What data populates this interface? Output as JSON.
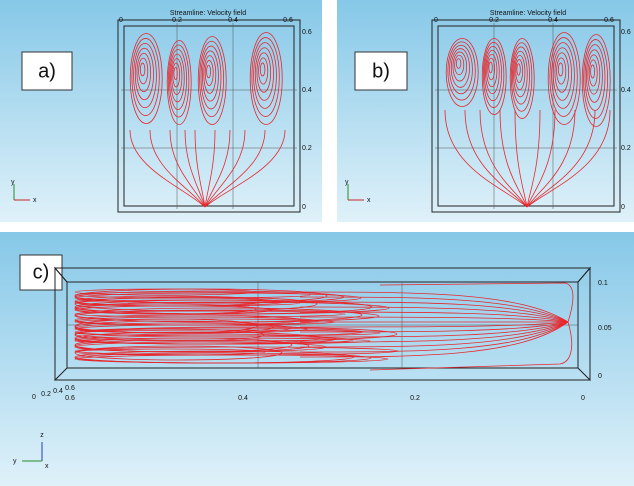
{
  "panels": [
    {
      "label": "a)",
      "title": "Streamline: Velocity field",
      "top_ticks": [
        "0",
        "0.2",
        "0.4",
        "0.6"
      ],
      "right_ticks": [
        "0.6",
        "0.4",
        "0.2",
        "0"
      ],
      "axes": [
        "y",
        "x"
      ]
    },
    {
      "label": "b)",
      "title": "Streamline: Velocity field",
      "top_ticks": [
        "0",
        "0.2",
        "0.4",
        "0.6"
      ],
      "right_ticks": [
        "0.6",
        "0.4",
        "0.2",
        "0"
      ],
      "axes": [
        "y",
        "x"
      ]
    },
    {
      "label": "c)",
      "right_ticks": [
        "0.1",
        "0.05",
        "0"
      ],
      "bottom_ticks": [
        "0.6",
        "0.4",
        "0.2",
        "0"
      ],
      "left_ticks": [
        "0",
        "0.2",
        "0.4",
        "0.6"
      ],
      "axes": [
        "z",
        "y",
        "x"
      ]
    }
  ]
}
